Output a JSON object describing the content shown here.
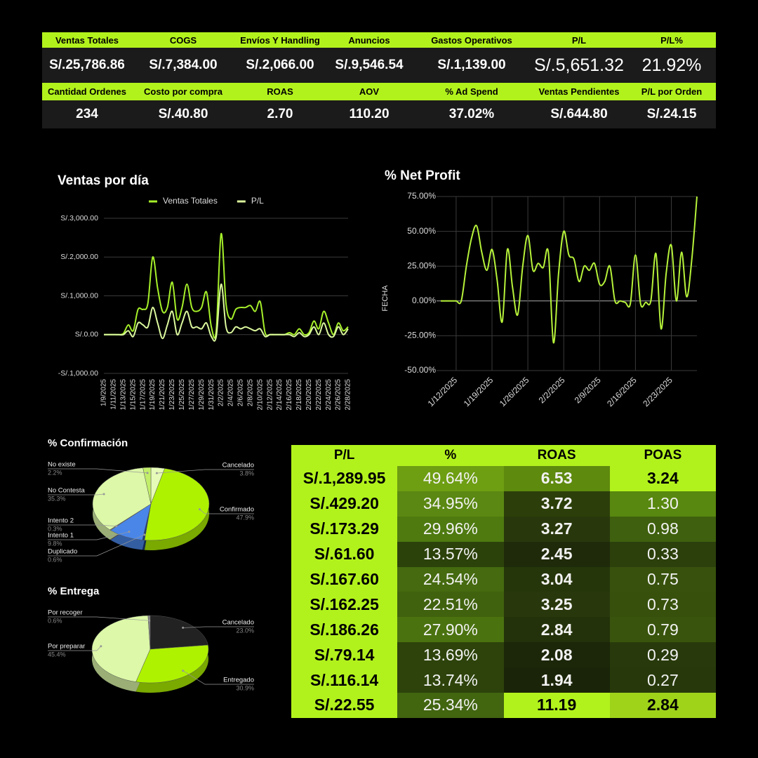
{
  "kpis": [
    {
      "headers": [
        "Ventas Totales",
        "COGS",
        "Envíos Y Handling",
        "Anuncios",
        "Gastos Operativos",
        "P/L",
        "P/L%"
      ],
      "values": [
        "S/.25,786.86",
        "S/.7,384.00",
        "S/.2,066.00",
        "S/.9,546.54",
        "S/.1,139.00",
        "S/.5,651.32",
        "21.92%"
      ]
    },
    {
      "headers": [
        "Cantidad Ordenes",
        "Costo por compra",
        "ROAS",
        "AOV",
        "% Ad Spend",
        "Ventas Pendientes",
        "P/L por Orden"
      ],
      "values": [
        "234",
        "S/.40.80",
        "2.70",
        "110.20",
        "37.02%",
        "S/.644.80",
        "S/.24.15"
      ]
    }
  ],
  "chart_data": [
    {
      "type": "line",
      "title": "Ventas por día",
      "categories": [
        "1/9/2025",
        null,
        "1/11/2025",
        null,
        "1/13/2025",
        null,
        "1/15/2025",
        null,
        "1/17/2025",
        null,
        "1/19/2025",
        null,
        "1/21/2025",
        null,
        "1/23/2025",
        null,
        "1/25/2025",
        null,
        "1/27/2025",
        null,
        "1/29/2025",
        null,
        "1/31/2025",
        null,
        "2/2/2025",
        null,
        "2/4/2025",
        null,
        "2/6/2025",
        null,
        "2/8/2025",
        null,
        "2/10/2025",
        null,
        "2/12/2025",
        null,
        "2/14/2025",
        null,
        "2/16/2025",
        null,
        "2/18/2025",
        null,
        "2/20/2025",
        null,
        "2/22/2025",
        null,
        "2/24/2025",
        null,
        "2/26/2025",
        null,
        "2/28/2025"
      ],
      "series": [
        {
          "name": "Ventas Totales",
          "color": "#a6f02a",
          "values": [
            0,
            0,
            0,
            0,
            30,
            250,
            100,
            650,
            650,
            800,
            2000,
            1200,
            600,
            700,
            1350,
            400,
            700,
            1300,
            700,
            600,
            700,
            1100,
            200,
            100,
            2600,
            800,
            400,
            650,
            700,
            700,
            750,
            600,
            850,
            50,
            0,
            0,
            0,
            0,
            50,
            0,
            150,
            0,
            50,
            350,
            150,
            600,
            300,
            0,
            300,
            100,
            200
          ]
        },
        {
          "name": "P/L",
          "color": "#dcf99e",
          "values": [
            0,
            0,
            0,
            0,
            0,
            100,
            -50,
            300,
            250,
            200,
            700,
            300,
            -100,
            250,
            600,
            0,
            300,
            600,
            200,
            200,
            150,
            300,
            -50,
            -50,
            1300,
            200,
            50,
            200,
            150,
            200,
            150,
            100,
            150,
            -50,
            0,
            0,
            0,
            0,
            0,
            -50,
            50,
            -50,
            0,
            200,
            0,
            300,
            0,
            -50,
            200,
            0,
            150
          ]
        }
      ],
      "ylim": [
        -1000,
        3000
      ],
      "yticks": [
        {
          "value": -1000,
          "label": "-S/.1,000.00"
        },
        {
          "value": 0,
          "label": "S/.0.00"
        },
        {
          "value": 1000,
          "label": "S/.1,000.00"
        },
        {
          "value": 2000,
          "label": "S/.2,000.00"
        },
        {
          "value": 3000,
          "label": "S/.3,000.00"
        }
      ],
      "grid": true,
      "legend": "top"
    },
    {
      "type": "line",
      "title": "% Net Profit",
      "y_label": "FECHA",
      "categories": [
        null,
        null,
        null,
        "1/12/2025",
        null,
        null,
        null,
        null,
        null,
        null,
        "1/19/2025",
        null,
        null,
        null,
        null,
        null,
        null,
        "1/26/2025",
        null,
        null,
        null,
        null,
        null,
        null,
        "2/2/2025",
        null,
        null,
        null,
        null,
        null,
        null,
        "2/9/2025",
        null,
        null,
        null,
        null,
        null,
        null,
        "2/16/2025",
        null,
        null,
        null,
        null,
        null,
        null,
        "2/23/2025",
        null,
        null,
        null,
        null,
        null
      ],
      "values": [
        0,
        0,
        0,
        0,
        0,
        25,
        45,
        54,
        35,
        22,
        37,
        15,
        -15,
        37,
        10,
        -10,
        25,
        47,
        22,
        27,
        24,
        35,
        -30,
        20,
        50,
        33,
        30,
        14,
        25,
        22,
        27,
        12,
        14,
        25,
        0,
        0,
        -1,
        -2,
        33,
        -2,
        -1,
        0,
        34,
        -20,
        20,
        40,
        0,
        35,
        3,
        30,
        75
      ],
      "color": "#b6f23a",
      "ylim": [
        -50,
        75
      ],
      "yticks": [
        {
          "value": -50,
          "label": "-50.00%"
        },
        {
          "value": -25,
          "label": "-25.00%"
        },
        {
          "value": 0,
          "label": "0.00%"
        },
        {
          "value": 25,
          "label": "25.00%"
        },
        {
          "value": 50,
          "label": "50.00%"
        },
        {
          "value": 75,
          "label": "75.00%"
        }
      ],
      "grid": true,
      "xgrid": true
    },
    {
      "type": "pie",
      "title": "% Confirmación",
      "categories": [
        "Cancelado",
        "Confirmado",
        "Duplicado",
        "Intento 1",
        "Intento 2",
        "No Contesta",
        "No existe"
      ],
      "values": [
        3.8,
        47.9,
        0.6,
        9.8,
        0.3,
        35.3,
        2.2
      ],
      "value_labels": [
        "3.8%",
        "47.9%",
        "0.6%",
        "9.8%",
        "0.3%",
        "35.3%",
        "2.2%"
      ],
      "colors": [
        "#e6fbb8",
        "#aef200",
        "#1c3d7a",
        "#4a86e8",
        "#777777",
        "#dcf8a8",
        "#c2ee6a"
      ]
    },
    {
      "type": "pie",
      "title": "% Entrega",
      "categories": [
        "Cancelado",
        "Entregado",
        "Por preparar",
        "Por recoger"
      ],
      "values": [
        23.0,
        30.9,
        45.4,
        0.6
      ],
      "value_labels": [
        "23.0%",
        "30.9%",
        "45.4%",
        "0.6%"
      ],
      "colors": [
        "#222222",
        "#aef200",
        "#dcf8a8",
        "#888888"
      ]
    }
  ],
  "table": {
    "columns": [
      "P/L",
      "%",
      "ROAS",
      "POAS"
    ],
    "rows": [
      [
        "S/.1,289.95",
        "49.64%",
        "6.53",
        "3.24"
      ],
      [
        "S/.429.20",
        "34.95%",
        "3.72",
        "1.30"
      ],
      [
        "S/.173.29",
        "29.96%",
        "3.27",
        "0.98"
      ],
      [
        "S/.61.60",
        "13.57%",
        "2.45",
        "0.33"
      ],
      [
        "S/.167.60",
        "24.54%",
        "3.04",
        "0.75"
      ],
      [
        "S/.162.25",
        "22.51%",
        "3.25",
        "0.73"
      ],
      [
        "S/.186.26",
        "27.90%",
        "2.84",
        "0.79"
      ],
      [
        "S/.79.14",
        "13.69%",
        "2.08",
        "0.29"
      ],
      [
        "S/.116.14",
        "13.74%",
        "1.94",
        "0.27"
      ],
      [
        "S/.22.55",
        "25.34%",
        "11.19",
        "2.84"
      ]
    ],
    "cell_colors": [
      [
        "#b2f21c",
        "#6e9e12",
        "#5e8a0e",
        "#b2f21c"
      ],
      [
        "#b2f21c",
        "#5a8812",
        "#2c3f0a",
        "#58880f"
      ],
      [
        "#b2f21c",
        "#4e7a10",
        "#29380c",
        "#3f600e"
      ],
      [
        "#b2f21c",
        "#2c420b",
        "#1f2a0a",
        "#2c400c"
      ],
      [
        "#b2f21c",
        "#456a0f",
        "#26360b",
        "#38520d"
      ],
      [
        "#b2f21c",
        "#40620e",
        "#29380c",
        "#37510d"
      ],
      [
        "#b2f21c",
        "#4a720f",
        "#23320a",
        "#39540d"
      ],
      [
        "#b2f21c",
        "#2d430b",
        "#1c2609",
        "#283a0b"
      ],
      [
        "#b2f21c",
        "#2d430b",
        "#1a2408",
        "#27390b"
      ],
      [
        "#b2f21c",
        "#426510",
        "#b2f21c",
        "#9fd31a"
      ]
    ]
  }
}
